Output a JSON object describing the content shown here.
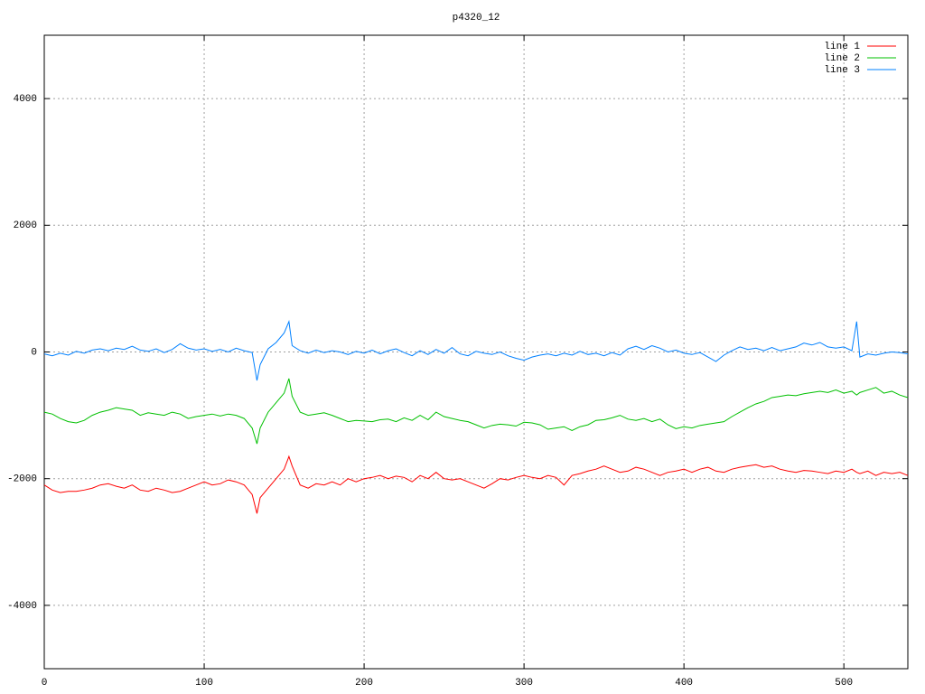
{
  "chart_data": {
    "type": "line",
    "title": "p4320_12",
    "x": [
      0,
      5,
      10,
      15,
      20,
      25,
      30,
      35,
      40,
      45,
      50,
      55,
      60,
      65,
      70,
      75,
      80,
      85,
      90,
      95,
      100,
      105,
      110,
      115,
      120,
      125,
      130,
      133,
      135,
      140,
      145,
      150,
      153,
      155,
      160,
      165,
      170,
      175,
      180,
      185,
      190,
      195,
      200,
      205,
      210,
      215,
      220,
      225,
      230,
      235,
      240,
      245,
      250,
      255,
      260,
      265,
      270,
      275,
      280,
      285,
      290,
      295,
      300,
      305,
      310,
      315,
      320,
      325,
      330,
      335,
      340,
      345,
      350,
      355,
      360,
      365,
      370,
      375,
      380,
      385,
      390,
      395,
      400,
      405,
      410,
      415,
      420,
      425,
      430,
      435,
      440,
      445,
      450,
      455,
      460,
      465,
      470,
      475,
      480,
      485,
      490,
      495,
      500,
      505,
      508,
      510,
      515,
      520,
      525,
      530,
      535,
      540
    ],
    "series": [
      {
        "name": "line 1",
        "color": "#ff0000",
        "values": [
          -2100,
          -2180,
          -2220,
          -2200,
          -2200,
          -2180,
          -2150,
          -2100,
          -2080,
          -2120,
          -2150,
          -2100,
          -2180,
          -2200,
          -2150,
          -2180,
          -2220,
          -2200,
          -2150,
          -2100,
          -2050,
          -2100,
          -2080,
          -2020,
          -2050,
          -2100,
          -2250,
          -2550,
          -2300,
          -2150,
          -2000,
          -1850,
          -1650,
          -1800,
          -2100,
          -2150,
          -2080,
          -2100,
          -2050,
          -2100,
          -2000,
          -2050,
          -2000,
          -1980,
          -1950,
          -2000,
          -1960,
          -1980,
          -2050,
          -1950,
          -2000,
          -1900,
          -2000,
          -2020,
          -2000,
          -2050,
          -2100,
          -2150,
          -2080,
          -2000,
          -2020,
          -1980,
          -1950,
          -1980,
          -2000,
          -1950,
          -1980,
          -2100,
          -1950,
          -1920,
          -1880,
          -1850,
          -1800,
          -1850,
          -1900,
          -1880,
          -1820,
          -1850,
          -1900,
          -1950,
          -1900,
          -1880,
          -1850,
          -1900,
          -1850,
          -1820,
          -1880,
          -1900,
          -1850,
          -1820,
          -1800,
          -1780,
          -1820,
          -1800,
          -1850,
          -1880,
          -1900,
          -1870,
          -1880,
          -1900,
          -1920,
          -1880,
          -1900,
          -1850,
          -1900,
          -1920,
          -1880,
          -1950,
          -1900,
          -1920,
          -1900,
          -1950
        ]
      },
      {
        "name": "line 2",
        "color": "#00c000",
        "values": [
          -950,
          -980,
          -1050,
          -1100,
          -1120,
          -1080,
          -1000,
          -950,
          -920,
          -880,
          -900,
          -920,
          -1000,
          -960,
          -980,
          -1000,
          -950,
          -980,
          -1050,
          -1020,
          -1000,
          -980,
          -1010,
          -980,
          -1000,
          -1050,
          -1200,
          -1450,
          -1200,
          -950,
          -800,
          -650,
          -420,
          -700,
          -950,
          -1000,
          -980,
          -960,
          -1000,
          -1050,
          -1100,
          -1080,
          -1090,
          -1100,
          -1070,
          -1060,
          -1100,
          -1040,
          -1080,
          -1000,
          -1070,
          -950,
          -1020,
          -1050,
          -1080,
          -1100,
          -1150,
          -1200,
          -1160,
          -1140,
          -1150,
          -1170,
          -1110,
          -1120,
          -1150,
          -1220,
          -1200,
          -1180,
          -1240,
          -1180,
          -1150,
          -1080,
          -1070,
          -1040,
          -1000,
          -1060,
          -1080,
          -1050,
          -1100,
          -1060,
          -1150,
          -1210,
          -1180,
          -1200,
          -1160,
          -1140,
          -1120,
          -1100,
          -1020,
          -950,
          -880,
          -820,
          -780,
          -720,
          -700,
          -680,
          -690,
          -660,
          -640,
          -620,
          -640,
          -600,
          -650,
          -620,
          -680,
          -640,
          -600,
          -560,
          -650,
          -620,
          -680,
          -720
        ]
      },
      {
        "name": "line 3",
        "color": "#0080ff",
        "values": [
          -30,
          -60,
          -20,
          -50,
          10,
          -20,
          30,
          50,
          20,
          60,
          40,
          90,
          30,
          10,
          50,
          -10,
          40,
          130,
          60,
          30,
          50,
          10,
          40,
          0,
          60,
          20,
          -10,
          -450,
          -200,
          50,
          150,
          300,
          480,
          100,
          20,
          -20,
          30,
          -10,
          20,
          0,
          -40,
          10,
          -20,
          30,
          -30,
          20,
          50,
          -10,
          -60,
          20,
          -40,
          40,
          -20,
          70,
          -30,
          -60,
          10,
          -20,
          -40,
          0,
          -60,
          -100,
          -130,
          -80,
          -50,
          -30,
          -60,
          -20,
          -50,
          10,
          -40,
          -20,
          -60,
          -10,
          -50,
          50,
          90,
          40,
          100,
          60,
          0,
          30,
          -20,
          -40,
          -10,
          -80,
          -150,
          -50,
          20,
          80,
          40,
          60,
          20,
          70,
          20,
          50,
          80,
          140,
          110,
          150,
          80,
          60,
          80,
          20,
          480,
          -80,
          -30,
          -50,
          -20,
          0,
          -10,
          -30
        ]
      }
    ],
    "xlim": [
      0,
      540
    ],
    "ylim": [
      -5000,
      5000
    ],
    "xticks": [
      0,
      100,
      200,
      300,
      400,
      500
    ],
    "yticks": [
      -4000,
      -2000,
      0,
      2000,
      4000
    ],
    "grid": true,
    "legend": "top-right"
  }
}
